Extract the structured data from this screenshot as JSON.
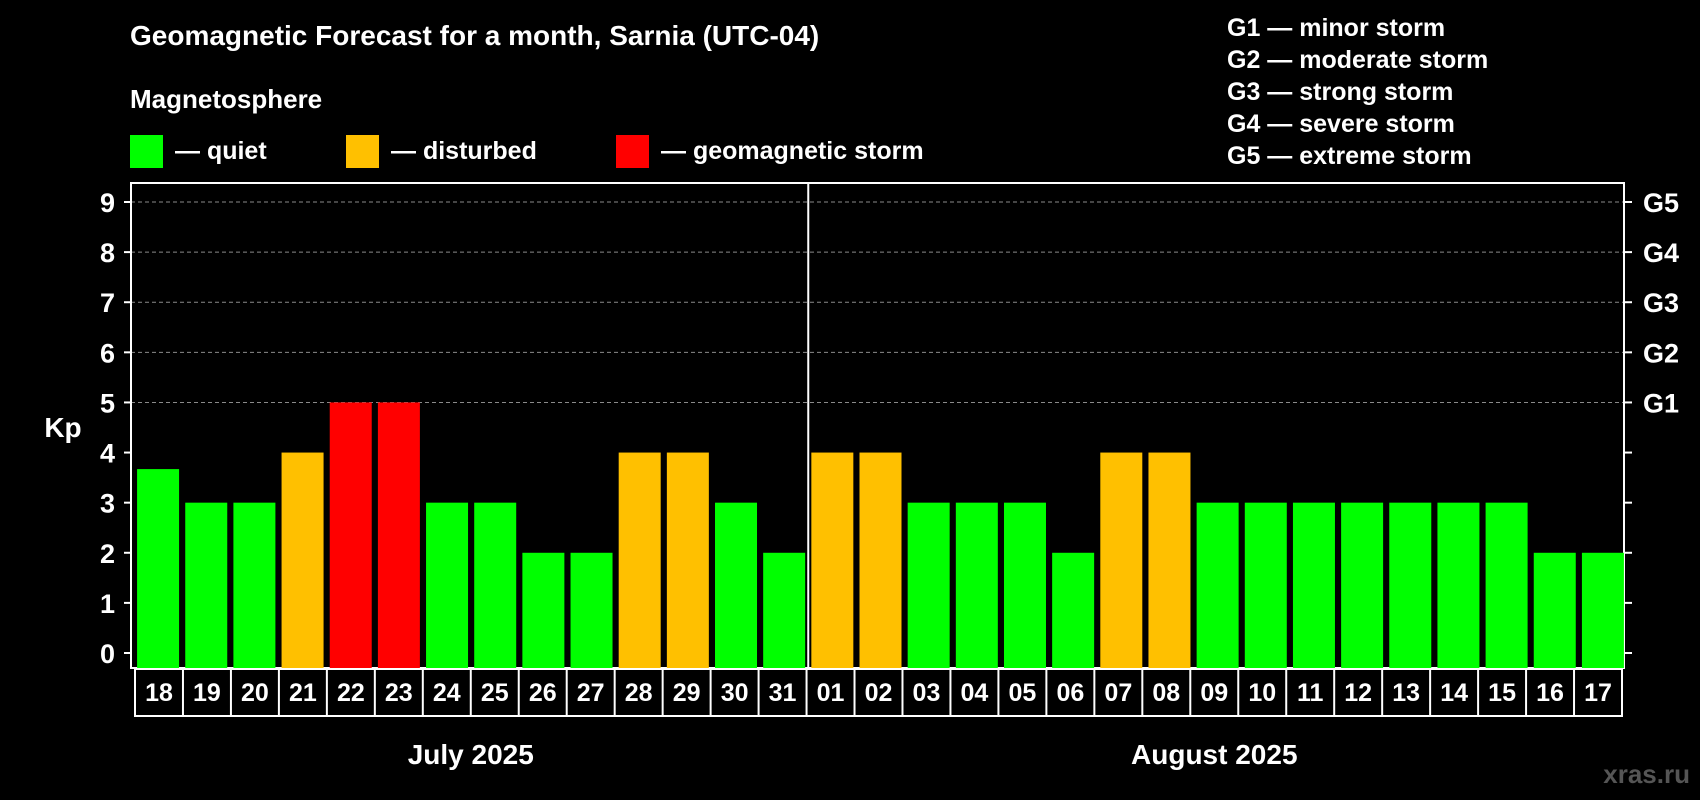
{
  "chart_data": {
    "type": "bar",
    "title": "Geomagnetic Forecast for a month, Sarnia (UTC-04)",
    "subtitle": "Magnetosphere",
    "ylabel": "Kp",
    "ylim": [
      0,
      9
    ],
    "yticks": [
      "0",
      "1",
      "2",
      "3",
      "4",
      "5",
      "6",
      "7",
      "8",
      "9"
    ],
    "gridlines": [
      5,
      6,
      7,
      8,
      9
    ],
    "storm_ticks": [
      {
        "kp": 5,
        "label": "G1"
      },
      {
        "kp": 6,
        "label": "G2"
      },
      {
        "kp": 7,
        "label": "G3"
      },
      {
        "kp": 8,
        "label": "G4"
      },
      {
        "kp": 9,
        "label": "G5"
      }
    ],
    "categories": [
      "18",
      "19",
      "20",
      "21",
      "22",
      "23",
      "24",
      "25",
      "26",
      "27",
      "28",
      "29",
      "30",
      "31",
      "01",
      "02",
      "03",
      "04",
      "05",
      "06",
      "07",
      "08",
      "09",
      "10",
      "11",
      "12",
      "13",
      "14",
      "15",
      "16",
      "17"
    ],
    "values": [
      3.67,
      3,
      3,
      4,
      5,
      5,
      3,
      3,
      2,
      2,
      4,
      4,
      3,
      2,
      4,
      4,
      3,
      3,
      3,
      2,
      4,
      4,
      3,
      3,
      3,
      3,
      3,
      3,
      3,
      2,
      2
    ],
    "months": [
      {
        "label": "July 2025",
        "start": 0,
        "count": 14
      },
      {
        "label": "August 2025",
        "start": 14,
        "count": 17
      }
    ],
    "legend": [
      {
        "label": "— quiet",
        "color": "#00ff00"
      },
      {
        "label": "— disturbed",
        "color": "#ffc000"
      },
      {
        "label": "— geomagnetic storm",
        "color": "#ff0000"
      }
    ],
    "storm_scale": [
      "G1 — minor storm",
      "G2 — moderate storm",
      "G3 — strong storm",
      "G4 — severe storm",
      "G5 — extreme storm"
    ],
    "colors": {
      "quiet": "#00ff00",
      "disturbed": "#ffc000",
      "storm": "#ff0000"
    },
    "watermark": "xras.ru"
  }
}
